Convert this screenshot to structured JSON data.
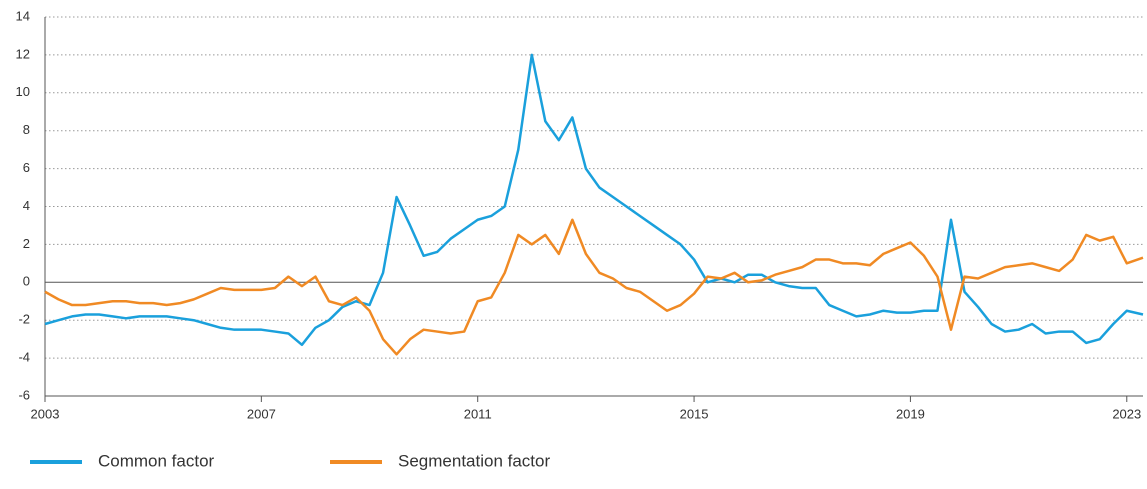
{
  "chart_data": {
    "type": "line",
    "x": [
      2003,
      2003.25,
      2003.5,
      2003.75,
      2004,
      2004.25,
      2004.5,
      2004.75,
      2005,
      2005.25,
      2005.5,
      2005.75,
      2006,
      2006.25,
      2006.5,
      2006.75,
      2007,
      2007.25,
      2007.5,
      2007.75,
      2008,
      2008.25,
      2008.5,
      2008.75,
      2009,
      2009.25,
      2009.5,
      2009.75,
      2010,
      2010.25,
      2010.5,
      2010.75,
      2011,
      2011.25,
      2011.5,
      2011.75,
      2012,
      2012.25,
      2012.5,
      2012.75,
      2013,
      2013.25,
      2013.5,
      2013.75,
      2014,
      2014.25,
      2014.5,
      2014.75,
      2015,
      2015.25,
      2015.5,
      2015.75,
      2016,
      2016.25,
      2016.5,
      2016.75,
      2017,
      2017.25,
      2017.5,
      2017.75,
      2018,
      2018.25,
      2018.5,
      2018.75,
      2019,
      2019.25,
      2019.5,
      2019.75,
      2020,
      2020.25,
      2020.5,
      2020.75,
      2021,
      2021.25,
      2021.5,
      2021.75,
      2022,
      2022.25,
      2022.5,
      2022.75,
      2023,
      2023.3
    ],
    "series": [
      {
        "name": "Common factor",
        "color": "#1aa0dc",
        "values": [
          -2.2,
          -2.0,
          -1.8,
          -1.7,
          -1.7,
          -1.8,
          -1.9,
          -1.8,
          -1.8,
          -1.8,
          -1.9,
          -2.0,
          -2.2,
          -2.4,
          -2.5,
          -2.5,
          -2.5,
          -2.6,
          -2.7,
          -3.3,
          -2.4,
          -2.0,
          -1.3,
          -1.0,
          -1.2,
          0.5,
          4.5,
          3.0,
          1.4,
          1.6,
          2.3,
          2.8,
          3.3,
          3.5,
          4.0,
          7.0,
          12.0,
          8.5,
          7.5,
          8.7,
          6.0,
          5.0,
          4.5,
          4.0,
          3.5,
          3.0,
          2.5,
          2.0,
          1.2,
          0.0,
          0.2,
          0.0,
          0.4,
          0.4,
          0.0,
          -0.2,
          -0.3,
          -0.3,
          -1.2,
          -1.5,
          -1.8,
          -1.7,
          -1.5,
          -1.6,
          -1.6,
          -1.5,
          -1.5,
          3.3,
          -0.5,
          -1.3,
          -2.2,
          -2.6,
          -2.5,
          -2.2,
          -2.7,
          -2.6,
          -2.6,
          -3.2,
          -3.0,
          -2.2,
          -1.5,
          -1.7
        ]
      },
      {
        "name": "Segmentation factor",
        "color": "#f08a24",
        "values": [
          -0.5,
          -0.9,
          -1.2,
          -1.2,
          -1.1,
          -1.0,
          -1.0,
          -1.1,
          -1.1,
          -1.2,
          -1.1,
          -0.9,
          -0.6,
          -0.3,
          -0.4,
          -0.4,
          -0.4,
          -0.3,
          0.3,
          -0.2,
          0.3,
          -1.0,
          -1.2,
          -0.8,
          -1.5,
          -3.0,
          -3.8,
          -3.0,
          -2.5,
          -2.6,
          -2.7,
          -2.6,
          -1.0,
          -0.8,
          0.5,
          2.5,
          2.0,
          2.5,
          1.5,
          3.3,
          1.5,
          0.5,
          0.2,
          -0.3,
          -0.5,
          -1.0,
          -1.5,
          -1.2,
          -0.6,
          0.3,
          0.2,
          0.5,
          0.0,
          0.1,
          0.4,
          0.6,
          0.8,
          1.2,
          1.2,
          1.0,
          1.0,
          0.9,
          1.5,
          1.8,
          2.1,
          1.4,
          0.3,
          -2.5,
          0.3,
          0.2,
          0.5,
          0.8,
          0.9,
          1.0,
          0.8,
          0.6,
          1.2,
          2.5,
          2.2,
          2.4,
          1.0,
          1.3
        ]
      }
    ],
    "xlim": [
      2003,
      2023.3
    ],
    "xticks": [
      2003,
      2007,
      2011,
      2015,
      2019,
      2023
    ],
    "ylim": [
      -6,
      14
    ],
    "yticks": [
      -6,
      -4,
      -2,
      0,
      2,
      4,
      6,
      8,
      10,
      12,
      14
    ],
    "grid": true
  }
}
